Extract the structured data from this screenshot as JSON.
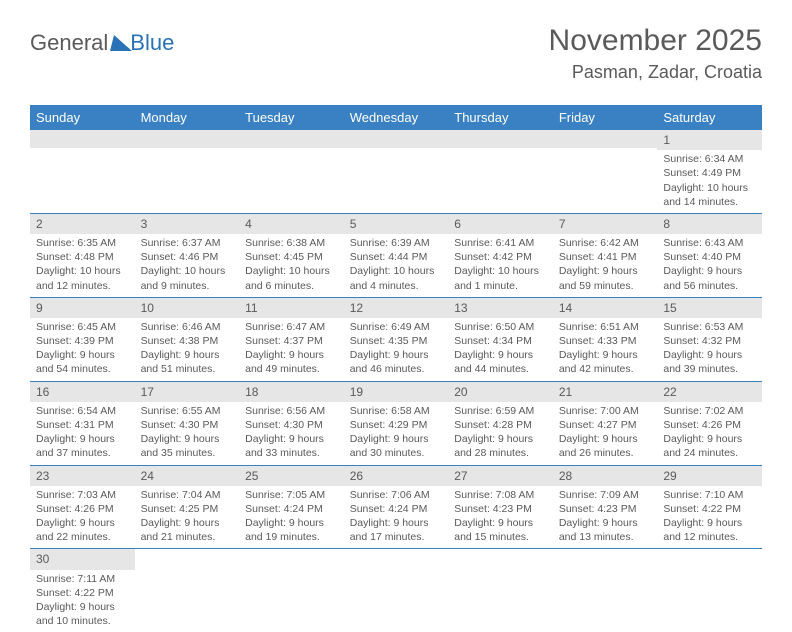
{
  "logo": {
    "text1": "General",
    "text2": "Blue"
  },
  "header": {
    "month": "November 2025",
    "location": "Pasman, Zadar, Croatia"
  },
  "colors": {
    "header_bg": "#3a81c4",
    "header_text": "#ffffff",
    "day_number_bg": "#e6e6e6",
    "text": "#5a5a5a",
    "rule": "#3a81c4",
    "logo_blue": "#2a72b5"
  },
  "day_headers": [
    "Sunday",
    "Monday",
    "Tuesday",
    "Wednesday",
    "Thursday",
    "Friday",
    "Saturday"
  ],
  "weeks": [
    [
      null,
      null,
      null,
      null,
      null,
      null,
      {
        "n": "1",
        "sunrise": "Sunrise: 6:34 AM",
        "sunset": "Sunset: 4:49 PM",
        "daylight": "Daylight: 10 hours and 14 minutes."
      }
    ],
    [
      {
        "n": "2",
        "sunrise": "Sunrise: 6:35 AM",
        "sunset": "Sunset: 4:48 PM",
        "daylight": "Daylight: 10 hours and 12 minutes."
      },
      {
        "n": "3",
        "sunrise": "Sunrise: 6:37 AM",
        "sunset": "Sunset: 4:46 PM",
        "daylight": "Daylight: 10 hours and 9 minutes."
      },
      {
        "n": "4",
        "sunrise": "Sunrise: 6:38 AM",
        "sunset": "Sunset: 4:45 PM",
        "daylight": "Daylight: 10 hours and 6 minutes."
      },
      {
        "n": "5",
        "sunrise": "Sunrise: 6:39 AM",
        "sunset": "Sunset: 4:44 PM",
        "daylight": "Daylight: 10 hours and 4 minutes."
      },
      {
        "n": "6",
        "sunrise": "Sunrise: 6:41 AM",
        "sunset": "Sunset: 4:42 PM",
        "daylight": "Daylight: 10 hours and 1 minute."
      },
      {
        "n": "7",
        "sunrise": "Sunrise: 6:42 AM",
        "sunset": "Sunset: 4:41 PM",
        "daylight": "Daylight: 9 hours and 59 minutes."
      },
      {
        "n": "8",
        "sunrise": "Sunrise: 6:43 AM",
        "sunset": "Sunset: 4:40 PM",
        "daylight": "Daylight: 9 hours and 56 minutes."
      }
    ],
    [
      {
        "n": "9",
        "sunrise": "Sunrise: 6:45 AM",
        "sunset": "Sunset: 4:39 PM",
        "daylight": "Daylight: 9 hours and 54 minutes."
      },
      {
        "n": "10",
        "sunrise": "Sunrise: 6:46 AM",
        "sunset": "Sunset: 4:38 PM",
        "daylight": "Daylight: 9 hours and 51 minutes."
      },
      {
        "n": "11",
        "sunrise": "Sunrise: 6:47 AM",
        "sunset": "Sunset: 4:37 PM",
        "daylight": "Daylight: 9 hours and 49 minutes."
      },
      {
        "n": "12",
        "sunrise": "Sunrise: 6:49 AM",
        "sunset": "Sunset: 4:35 PM",
        "daylight": "Daylight: 9 hours and 46 minutes."
      },
      {
        "n": "13",
        "sunrise": "Sunrise: 6:50 AM",
        "sunset": "Sunset: 4:34 PM",
        "daylight": "Daylight: 9 hours and 44 minutes."
      },
      {
        "n": "14",
        "sunrise": "Sunrise: 6:51 AM",
        "sunset": "Sunset: 4:33 PM",
        "daylight": "Daylight: 9 hours and 42 minutes."
      },
      {
        "n": "15",
        "sunrise": "Sunrise: 6:53 AM",
        "sunset": "Sunset: 4:32 PM",
        "daylight": "Daylight: 9 hours and 39 minutes."
      }
    ],
    [
      {
        "n": "16",
        "sunrise": "Sunrise: 6:54 AM",
        "sunset": "Sunset: 4:31 PM",
        "daylight": "Daylight: 9 hours and 37 minutes."
      },
      {
        "n": "17",
        "sunrise": "Sunrise: 6:55 AM",
        "sunset": "Sunset: 4:30 PM",
        "daylight": "Daylight: 9 hours and 35 minutes."
      },
      {
        "n": "18",
        "sunrise": "Sunrise: 6:56 AM",
        "sunset": "Sunset: 4:30 PM",
        "daylight": "Daylight: 9 hours and 33 minutes."
      },
      {
        "n": "19",
        "sunrise": "Sunrise: 6:58 AM",
        "sunset": "Sunset: 4:29 PM",
        "daylight": "Daylight: 9 hours and 30 minutes."
      },
      {
        "n": "20",
        "sunrise": "Sunrise: 6:59 AM",
        "sunset": "Sunset: 4:28 PM",
        "daylight": "Daylight: 9 hours and 28 minutes."
      },
      {
        "n": "21",
        "sunrise": "Sunrise: 7:00 AM",
        "sunset": "Sunset: 4:27 PM",
        "daylight": "Daylight: 9 hours and 26 minutes."
      },
      {
        "n": "22",
        "sunrise": "Sunrise: 7:02 AM",
        "sunset": "Sunset: 4:26 PM",
        "daylight": "Daylight: 9 hours and 24 minutes."
      }
    ],
    [
      {
        "n": "23",
        "sunrise": "Sunrise: 7:03 AM",
        "sunset": "Sunset: 4:26 PM",
        "daylight": "Daylight: 9 hours and 22 minutes."
      },
      {
        "n": "24",
        "sunrise": "Sunrise: 7:04 AM",
        "sunset": "Sunset: 4:25 PM",
        "daylight": "Daylight: 9 hours and 21 minutes."
      },
      {
        "n": "25",
        "sunrise": "Sunrise: 7:05 AM",
        "sunset": "Sunset: 4:24 PM",
        "daylight": "Daylight: 9 hours and 19 minutes."
      },
      {
        "n": "26",
        "sunrise": "Sunrise: 7:06 AM",
        "sunset": "Sunset: 4:24 PM",
        "daylight": "Daylight: 9 hours and 17 minutes."
      },
      {
        "n": "27",
        "sunrise": "Sunrise: 7:08 AM",
        "sunset": "Sunset: 4:23 PM",
        "daylight": "Daylight: 9 hours and 15 minutes."
      },
      {
        "n": "28",
        "sunrise": "Sunrise: 7:09 AM",
        "sunset": "Sunset: 4:23 PM",
        "daylight": "Daylight: 9 hours and 13 minutes."
      },
      {
        "n": "29",
        "sunrise": "Sunrise: 7:10 AM",
        "sunset": "Sunset: 4:22 PM",
        "daylight": "Daylight: 9 hours and 12 minutes."
      }
    ],
    [
      {
        "n": "30",
        "sunrise": "Sunrise: 7:11 AM",
        "sunset": "Sunset: 4:22 PM",
        "daylight": "Daylight: 9 hours and 10 minutes."
      },
      null,
      null,
      null,
      null,
      null,
      null
    ]
  ]
}
